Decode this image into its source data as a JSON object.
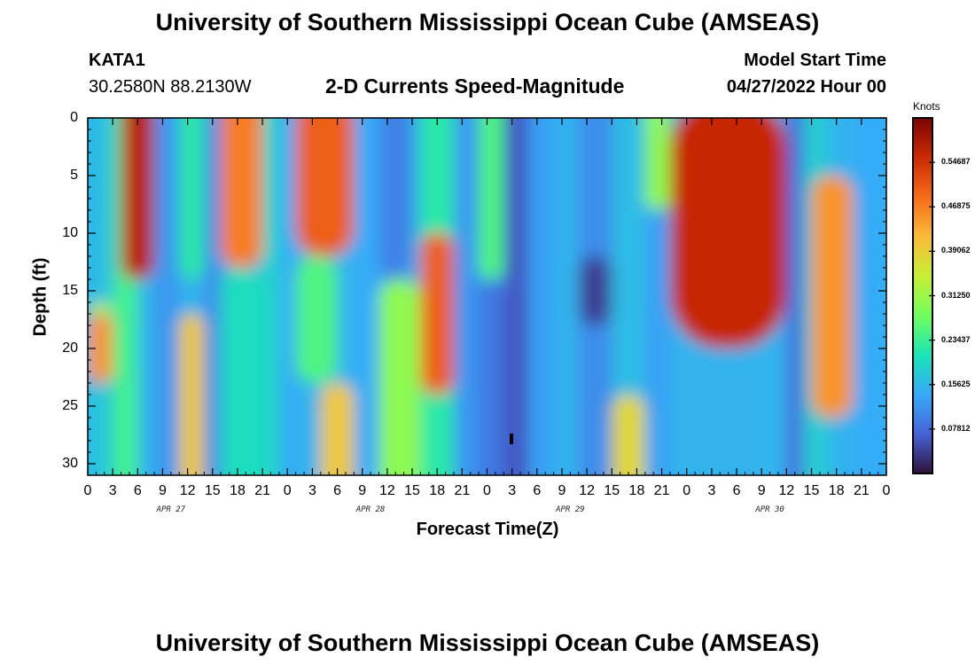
{
  "header": {
    "title": "University of Southern Mississippi Ocean Cube (AMSEAS)",
    "station": "KATA1",
    "coordinates": "30.2580N  88.2130W",
    "subtitle": "2-D Currents Speed-Magnitude",
    "model_start_label": "Model Start Time",
    "model_start_value": "04/27/2022 Hour 00"
  },
  "footer": {
    "title": "University of Southern Mississippi Ocean Cube (AMSEAS)"
  },
  "chart_data": {
    "type": "heatmap",
    "title": "2-D Currents Speed-Magnitude",
    "xlabel": "Forecast Time(Z)",
    "ylabel": "Depth (ft)",
    "x_ticks": [
      "0",
      "3",
      "6",
      "9",
      "12",
      "15",
      "18",
      "21",
      "0",
      "3",
      "6",
      "9",
      "12",
      "15",
      "18",
      "21",
      "0",
      "3",
      "6",
      "9",
      "12",
      "15",
      "18",
      "21",
      "0",
      "3",
      "6",
      "9",
      "12",
      "15",
      "18",
      "21",
      "0"
    ],
    "date_labels": [
      "APR 27",
      "APR 28",
      "APR 29",
      "APR 30"
    ],
    "x_range_hours": [
      0,
      96
    ],
    "y_ticks": [
      "0",
      "5",
      "10",
      "15",
      "20",
      "25",
      "30"
    ],
    "y_range_ft": [
      0,
      31
    ],
    "colorbar": {
      "unit": "Knots",
      "ticks": [
        "0.54687",
        "0.46875",
        "0.39062",
        "0.31250",
        "0.23437",
        "0.15625",
        "0.07812"
      ],
      "range": [
        0,
        0.625
      ],
      "colors": [
        "#30123b",
        "#4662d7",
        "#36aaf9",
        "#1ae4b6",
        "#72fe5e",
        "#c8ef34",
        "#faba39",
        "#f66b19",
        "#cb2a04",
        "#7a0403"
      ]
    },
    "cells": [
      {
        "t": [
          0,
          3
        ],
        "d": [
          0,
          16
        ],
        "v": 0.16
      },
      {
        "t": [
          0,
          3
        ],
        "d": [
          16,
          17
        ],
        "v": 0.32
      },
      {
        "t": [
          0,
          3
        ],
        "d": [
          17,
          23
        ],
        "v": 0.45
      },
      {
        "t": [
          0,
          3
        ],
        "d": [
          23,
          31
        ],
        "v": 0.17
      },
      {
        "t": [
          3,
          6
        ],
        "d": [
          0,
          31
        ],
        "v": 0.24
      },
      {
        "t": [
          4,
          8
        ],
        "d": [
          0,
          14
        ],
        "v": 0.57
      },
      {
        "t": [
          8,
          11
        ],
        "d": [
          0,
          31
        ],
        "v": 0.12
      },
      {
        "t": [
          11,
          14
        ],
        "d": [
          0,
          14
        ],
        "v": 0.22
      },
      {
        "t": [
          11,
          14
        ],
        "d": [
          17,
          31
        ],
        "v": 0.4
      },
      {
        "t": [
          14,
          16
        ],
        "d": [
          0,
          31
        ],
        "v": 0.11
      },
      {
        "t": [
          16,
          21
        ],
        "d": [
          0,
          13
        ],
        "v": 0.47
      },
      {
        "t": [
          16,
          21
        ],
        "d": [
          13,
          31
        ],
        "v": 0.2
      },
      {
        "t": [
          21,
          23
        ],
        "d": [
          0,
          31
        ],
        "v": 0.19
      },
      {
        "t": [
          23,
          25
        ],
        "d": [
          0,
          31
        ],
        "v": 0.14
      },
      {
        "t": [
          25,
          32
        ],
        "d": [
          0,
          12
        ],
        "v": 0.5
      },
      {
        "t": [
          25,
          30
        ],
        "d": [
          12,
          23
        ],
        "v": 0.25
      },
      {
        "t": [
          28,
          32
        ],
        "d": [
          23,
          31
        ],
        "v": 0.4
      },
      {
        "t": [
          32,
          35
        ],
        "d": [
          0,
          31
        ],
        "v": 0.14
      },
      {
        "t": [
          35,
          39
        ],
        "d": [
          0,
          14
        ],
        "v": 0.1
      },
      {
        "t": [
          35,
          40
        ],
        "d": [
          14,
          31
        ],
        "v": 0.3
      },
      {
        "t": [
          40,
          44
        ],
        "d": [
          0,
          31
        ],
        "v": 0.22
      },
      {
        "t": [
          40,
          44
        ],
        "d": [
          10,
          24
        ],
        "v": 0.5
      },
      {
        "t": [
          44,
          47
        ],
        "d": [
          0,
          31
        ],
        "v": 0.12
      },
      {
        "t": [
          47,
          50
        ],
        "d": [
          0,
          14
        ],
        "v": 0.25
      },
      {
        "t": [
          47,
          50
        ],
        "d": [
          14,
          31
        ],
        "v": 0.09
      },
      {
        "t": [
          50,
          53
        ],
        "d": [
          0,
          31
        ],
        "v": 0.06
      },
      {
        "t": [
          53,
          56
        ],
        "d": [
          0,
          31
        ],
        "v": 0.13
      },
      {
        "t": [
          56,
          59
        ],
        "d": [
          0,
          31
        ],
        "v": 0.15
      },
      {
        "t": [
          59,
          63
        ],
        "d": [
          0,
          31
        ],
        "v": 0.11
      },
      {
        "t": [
          59,
          63
        ],
        "d": [
          12,
          18
        ],
        "v": 0.04
      },
      {
        "t": [
          63,
          67
        ],
        "d": [
          0,
          24
        ],
        "v": 0.16
      },
      {
        "t": [
          63,
          67
        ],
        "d": [
          24,
          31
        ],
        "v": 0.38
      },
      {
        "t": [
          67,
          70
        ],
        "d": [
          0,
          8
        ],
        "v": 0.3
      },
      {
        "t": [
          67,
          70
        ],
        "d": [
          8,
          31
        ],
        "v": 0.13
      },
      {
        "t": [
          70,
          84
        ],
        "d": [
          0,
          20
        ],
        "v": 0.56
      },
      {
        "t": [
          70,
          84
        ],
        "d": [
          20,
          31
        ],
        "v": 0.15
      },
      {
        "t": [
          84,
          86
        ],
        "d": [
          0,
          31
        ],
        "v": 0.08
      },
      {
        "t": [
          86,
          89
        ],
        "d": [
          0,
          31
        ],
        "v": 0.18
      },
      {
        "t": [
          87,
          92
        ],
        "d": [
          5,
          26
        ],
        "v": 0.45
      },
      {
        "t": [
          92,
          96
        ],
        "d": [
          0,
          31
        ],
        "v": 0.14
      }
    ]
  }
}
